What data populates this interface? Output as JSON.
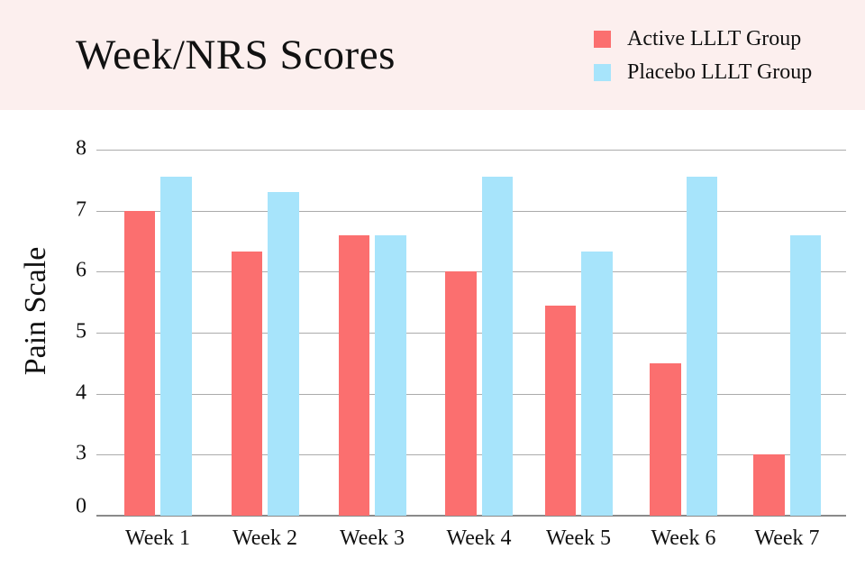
{
  "header": {
    "title": "Week/NRS Scores",
    "background_color": "#fcefee"
  },
  "legend": {
    "items": [
      {
        "label": "Active LLLT Group",
        "color": "#fb6f6f"
      },
      {
        "label": "Placebo LLLT Group",
        "color": "#a7e4fb"
      }
    ]
  },
  "chart_data": {
    "type": "bar",
    "title": "Week/NRS Scores",
    "xlabel": "",
    "ylabel": "Pain Scale",
    "categories": [
      "Week 1",
      "Week 2",
      "Week 3",
      "Week 4",
      "Week 5",
      "Week 6",
      "Week 7"
    ],
    "series": [
      {
        "name": "Active LLLT Group",
        "color": "#fb6f6f",
        "values": [
          7.0,
          6.33,
          6.6,
          6.0,
          5.45,
          4.5,
          3.0
        ]
      },
      {
        "name": "Placebo LLLT Group",
        "color": "#a7e4fb",
        "values": [
          7.55,
          7.3,
          6.6,
          7.55,
          6.33,
          7.55,
          6.6
        ]
      }
    ],
    "y_ticks": [
      8,
      7,
      6,
      5,
      4,
      3,
      0
    ],
    "ylim": [
      0,
      8
    ],
    "grid": true,
    "legend_position": "top-right",
    "axis_note": "y ticks 0,3,4,5,6,7,8 are evenly spaced (0-3 segment compressed)",
    "gridline_color": "#ababab",
    "baseline_color": "#8a8a8a"
  }
}
